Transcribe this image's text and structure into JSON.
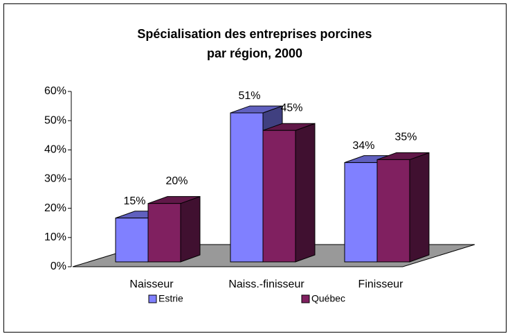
{
  "chart_data": {
    "type": "bar3d",
    "title": [
      "Spécialisation des entreprises porcines",
      "par région, 2000"
    ],
    "categories": [
      "Naisseur",
      "Naiss.-finisseur",
      "Finisseur"
    ],
    "series": [
      {
        "name": "Estrie",
        "color": "#8080ff",
        "values": [
          15,
          51,
          34
        ],
        "value_labels": [
          "15%",
          "51%",
          "34%"
        ]
      },
      {
        "name": "Québec",
        "color": "#802060",
        "values": [
          20,
          45,
          35
        ],
        "value_labels": [
          "20%",
          "45%",
          "35%"
        ]
      }
    ],
    "ylim": [
      0,
      60
    ],
    "yticks": [
      {
        "value": 0,
        "label": "0%"
      },
      {
        "value": 10,
        "label": "10%"
      },
      {
        "value": 20,
        "label": "20%"
      },
      {
        "value": 30,
        "label": "30%"
      },
      {
        "value": 40,
        "label": "40%"
      },
      {
        "value": 50,
        "label": "50%"
      },
      {
        "value": 60,
        "label": "60%"
      }
    ],
    "legend": "bottom"
  }
}
